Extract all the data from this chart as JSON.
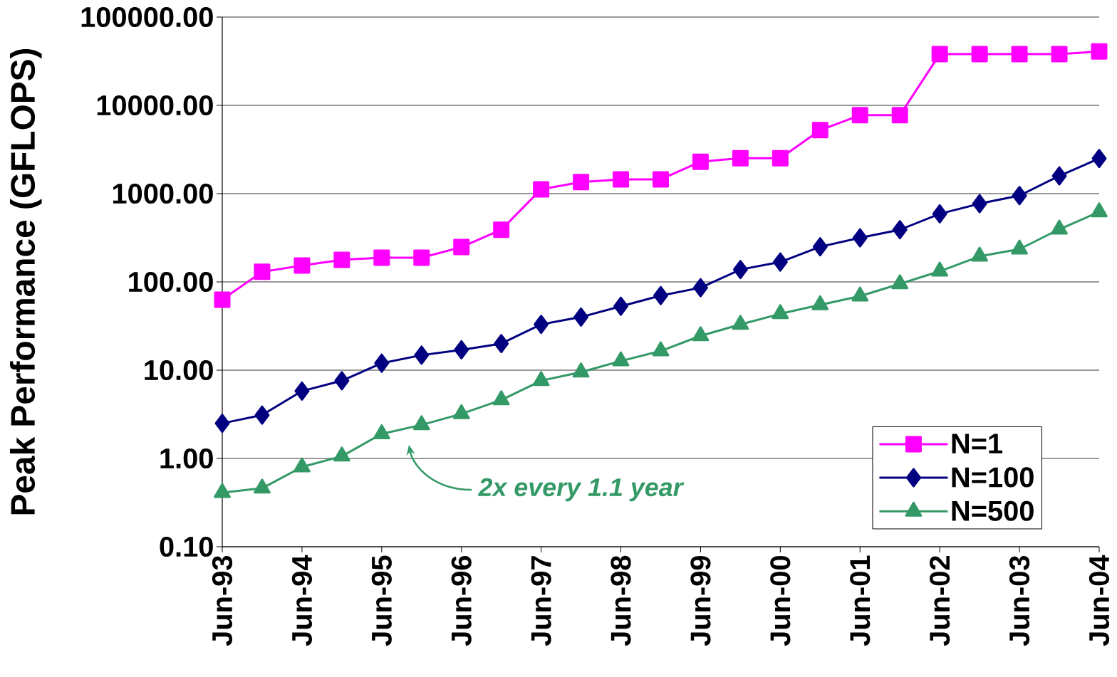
{
  "chart_data": {
    "type": "line",
    "ylabel": "Peak Performance (GFLOPS)",
    "categories": [
      "Jun-93",
      null,
      "Jun-94",
      null,
      "Jun-95",
      null,
      "Jun-96",
      null,
      "Jun-97",
      null,
      "Jun-98",
      null,
      "Jun-99",
      null,
      "Jun-00",
      null,
      "Jun-01",
      null,
      "Jun-02",
      null,
      "Jun-03",
      null,
      "Jun-04"
    ],
    "series": [
      {
        "name": "N=1",
        "color": "#ff00ff",
        "marker": "square",
        "values": [
          63,
          130,
          153,
          178,
          188,
          188,
          248,
          390,
          1120,
          1350,
          1450,
          1450,
          2300,
          2520,
          2520,
          5240,
          7740,
          7740,
          38000,
          38000,
          38000,
          38000,
          40800
        ]
      },
      {
        "name": "N=100",
        "color": "#000080",
        "marker": "diamond",
        "values": [
          2.5,
          3.1,
          5.8,
          7.6,
          12,
          14.8,
          17,
          20,
          33,
          40,
          53,
          70,
          86,
          138,
          168,
          250,
          316,
          390,
          590,
          770,
          950,
          1590,
          2500
        ]
      },
      {
        "name": "N=500",
        "color": "#339966",
        "marker": "triangle",
        "values": [
          0.41,
          0.46,
          0.8,
          1.06,
          1.9,
          2.4,
          3.2,
          4.6,
          7.6,
          9.5,
          12.7,
          16.5,
          24.5,
          33,
          43.5,
          55,
          69,
          95,
          132,
          195,
          235,
          395,
          620
        ]
      }
    ],
    "log": "y",
    "ylim": [
      0.1,
      100000
    ],
    "yticks": [
      {
        "value": 0.1,
        "label": "0.10"
      },
      {
        "value": 1,
        "label": "1.00"
      },
      {
        "value": 10,
        "label": "10.00"
      },
      {
        "value": 100,
        "label": "100.00"
      },
      {
        "value": 1000,
        "label": "1000.00"
      },
      {
        "value": 10000,
        "label": "10000.00"
      },
      {
        "value": 100000,
        "label": "100000.00"
      }
    ],
    "grid": "y",
    "legend": "bottom right",
    "annotations": [
      "2x every 1.1 year"
    ]
  }
}
